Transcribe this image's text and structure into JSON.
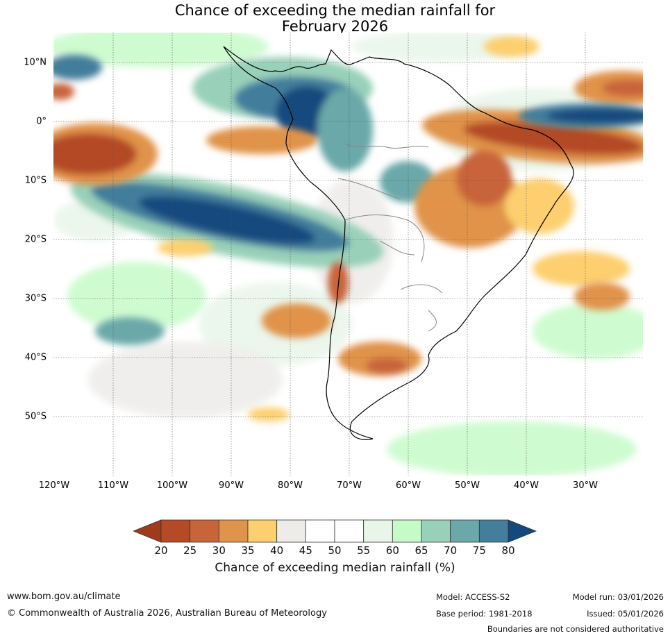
{
  "title": {
    "line1": "Chance of exceeding the median rainfall for",
    "line2": "February 2026"
  },
  "map": {
    "region": "South America and surrounding oceans",
    "lat_labels": [
      "10°N",
      "0°",
      "10°S",
      "20°S",
      "30°S",
      "40°S",
      "50°S"
    ],
    "lon_labels": [
      "120°W",
      "110°W",
      "100°W",
      "90°W",
      "80°W",
      "70°W",
      "60°W",
      "50°W",
      "40°W",
      "30°W"
    ]
  },
  "colorbar": {
    "ticks": [
      "20",
      "25",
      "30",
      "35",
      "40",
      "45",
      "50",
      "55",
      "60",
      "65",
      "70",
      "75",
      "80"
    ],
    "colors": [
      "#a03a1c",
      "#b44a26",
      "#c8643a",
      "#e0934a",
      "#fdcf6e",
      "#eeece9",
      "#ffffff",
      "#ffffff",
      "#e8f5e9",
      "#c6fbc8",
      "#99d0b9",
      "#6ba8a9",
      "#437e9c",
      "#14497e"
    ],
    "title": "Chance of exceeding median rainfall (%)"
  },
  "footer": {
    "website": "www.bom.gov.au/climate",
    "copyright": "© Commonwealth of Australia 2026, Australian Bureau of Meteorology",
    "model": "Model: ACCESS-S2",
    "base_period": "Base period: 1981-2018",
    "model_run": "Model run: 03/01/2026",
    "issued": "Issued: 05/01/2026",
    "disclaimer": "Boundaries are not considered authoritative"
  }
}
